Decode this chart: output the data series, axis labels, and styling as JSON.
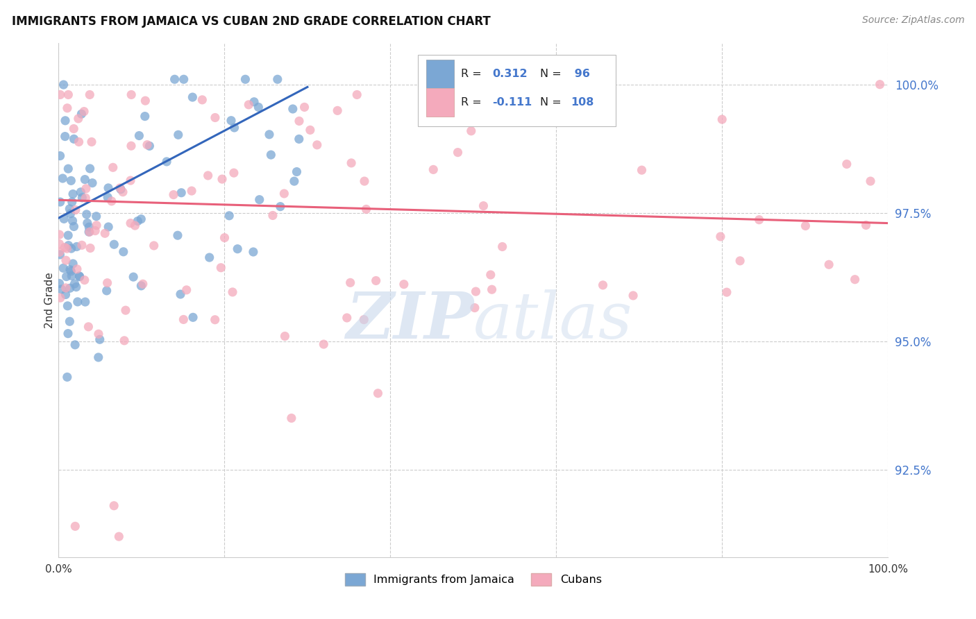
{
  "title": "IMMIGRANTS FROM JAMAICA VS CUBAN 2ND GRADE CORRELATION CHART",
  "source": "Source: ZipAtlas.com",
  "ylabel": "2nd Grade",
  "ytick_values": [
    0.925,
    0.95,
    0.975,
    1.0
  ],
  "xlim": [
    0.0,
    1.0
  ],
  "ylim": [
    0.908,
    1.008
  ],
  "legend_label_jamaica": "Immigrants from Jamaica",
  "legend_label_cuban": "Cubans",
  "color_jamaica": "#7BA7D4",
  "color_cuban": "#F4AABC",
  "trendline_jamaica_color": "#3366BB",
  "trendline_cuban_color": "#E8607A",
  "r_jamaica": 0.312,
  "n_jamaica": 96,
  "r_cuban": -0.111,
  "n_cuban": 108,
  "jam_trendline_x0": 0.0,
  "jam_trendline_y0": 0.974,
  "jam_trendline_x1": 0.3,
  "jam_trendline_y1": 0.9995,
  "cub_trendline_x0": 0.0,
  "cub_trendline_y0": 0.9775,
  "cub_trendline_x1": 1.0,
  "cub_trendline_y1": 0.973
}
